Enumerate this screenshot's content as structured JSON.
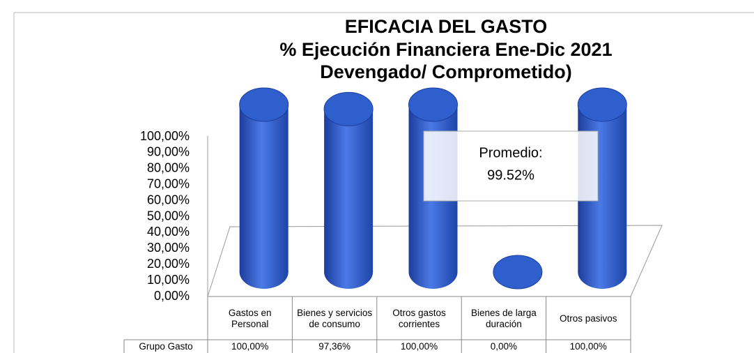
{
  "chart_data": {
    "type": "bar3d",
    "title": [
      "EFICACIA DEL GASTO",
      "% Ejecución Financiera Ene-Dic 2021",
      "Devengado/ Comprometido)"
    ],
    "categories": [
      "Gastos en Personal",
      "Bienes y servicios de consumo",
      "Otros gastos corrientes",
      "Bienes de larga duración",
      "Otros pasivos"
    ],
    "series": [
      {
        "name": "Grupo Gasto",
        "color": "#2f5fcc",
        "values": [
          100,
          97.36,
          100,
          0,
          100
        ],
        "value_labels": [
          "100,00%",
          "97,36%",
          "100,00%",
          "0,00%",
          "100,00%"
        ]
      }
    ],
    "ylim": [
      0,
      100
    ],
    "yticks": [
      {
        "value": 0,
        "label": "0,00%"
      },
      {
        "value": 10,
        "label": "10,00%"
      },
      {
        "value": 20,
        "label": "20,00%"
      },
      {
        "value": 30,
        "label": "30,00%"
      },
      {
        "value": 40,
        "label": "40,00%"
      },
      {
        "value": 50,
        "label": "50,00%"
      },
      {
        "value": 60,
        "label": "60,00%"
      },
      {
        "value": 70,
        "label": "70,00%"
      },
      {
        "value": 80,
        "label": "80,00%"
      },
      {
        "value": 90,
        "label": "90,00%"
      },
      {
        "value": 100,
        "label": "100,00%"
      }
    ],
    "annotation": [
      "Promedio:",
      "99.52%"
    ]
  }
}
